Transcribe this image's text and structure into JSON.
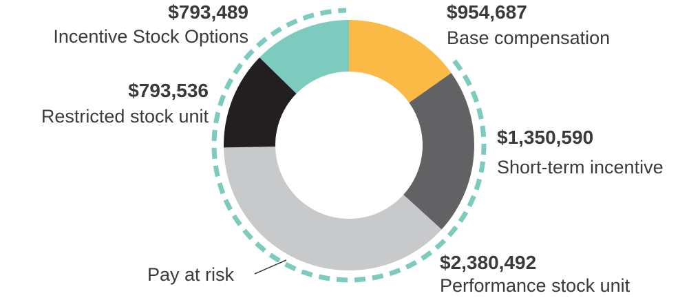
{
  "chart_data": {
    "type": "pie",
    "variant": "donut",
    "slices": [
      {
        "label": "Base compensation",
        "value": 954687,
        "value_text": "$954,687",
        "color": "#fbba45"
      },
      {
        "label": "Short-term incentive",
        "value": 1350590,
        "value_text": "$1,350,590",
        "color": "#626264"
      },
      {
        "label": "Performance stock unit",
        "value": 2380492,
        "value_text": "$2,380,492",
        "color": "#c8c9cb"
      },
      {
        "label": "Restricted stock unit",
        "value": 793536,
        "value_text": "$793,536",
        "color": "#231f20"
      },
      {
        "label": "Incentive Stock Options",
        "value": 793489,
        "value_text": "$793,489",
        "color": "#7ccbbe"
      }
    ],
    "annotation": {
      "text": "Pay at risk",
      "ring_color": "#7ccbbe"
    }
  }
}
